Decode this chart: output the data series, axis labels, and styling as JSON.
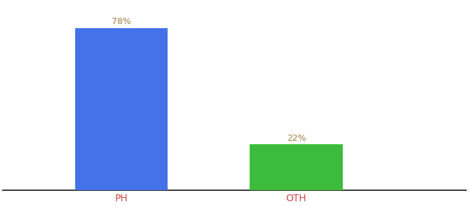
{
  "categories": [
    "PH",
    "OTH"
  ],
  "values": [
    78,
    22
  ],
  "bar_colors": [
    "#4472e8",
    "#3dbb3d"
  ],
  "labels": [
    "78%",
    "22%"
  ],
  "label_color": "#a08040",
  "xlabel_color": "#cc4444",
  "background_color": "#ffffff",
  "bar_width": 0.18,
  "ylim": [
    0,
    90
  ],
  "figsize": [
    6.8,
    3.0
  ],
  "dpi": 100,
  "x_positions": [
    0.28,
    0.62
  ]
}
